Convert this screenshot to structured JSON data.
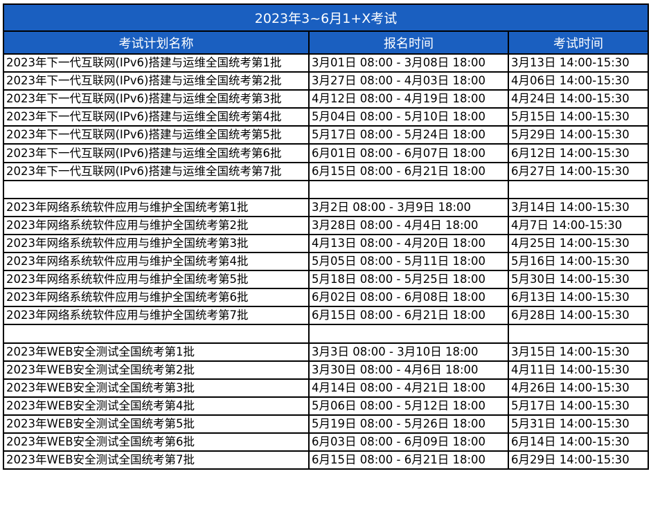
{
  "title": "2023年3~6月1+X考试",
  "headers": [
    "考试计划名称",
    "报名时间",
    "考试时间"
  ],
  "header_color": "#1a5fc0",
  "rows": [
    [
      "2023年下一代互联网(IPv6)搭建与运维全国统考第1批",
      "3月01日 08:00 - 3月08日 18:00",
      "3月13日 14:00-15:30"
    ],
    [
      "2023年下一代互联网(IPv6)搭建与运维全国统考第2批",
      "3月27日 08:00 - 4月03日 18:00",
      "4月06日 14:00-15:30"
    ],
    [
      "2023年下一代互联网(IPv6)搭建与运维全国统考第3批",
      "4月12日 08:00 - 4月19日 18:00",
      "4月24日 14:00-15:30"
    ],
    [
      "2023年下一代互联网(IPv6)搭建与运维全国统考第4批",
      "5月04日 08:00 - 5月10日 18:00",
      "5月15日 14:00-15:30"
    ],
    [
      "2023年下一代互联网(IPv6)搭建与运维全国统考第5批",
      "5月17日 08:00 - 5月24日 18:00",
      "5月29日 14:00-15:30"
    ],
    [
      "2023年下一代互联网(IPv6)搭建与运维全国统考第6批",
      "6月01日 08:00 - 6月07日 18:00",
      "6月12日 14:00-15:30"
    ],
    [
      "2023年下一代互联网(IPv6)搭建与运维全国统考第7批",
      "6月15日 08:00 - 6月21日 18:00",
      "6月27日 14:00-15:30"
    ],
    [
      "",
      "",
      ""
    ],
    [
      "2023年网络系统软件应用与维护全国统考第1批",
      "3月2日 08:00 - 3月9日 18:00",
      "3月14日 14:00-15:30"
    ],
    [
      "2023年网络系统软件应用与维护全国统考第2批",
      "3月28日 08:00 - 4月4日 18:00",
      "4月7日 14:00-15:30"
    ],
    [
      "2023年网络系统软件应用与维护全国统考第3批",
      "4月13日 08:00 - 4月20日 18:00",
      "4月25日 14:00-15:30"
    ],
    [
      "2023年网络系统软件应用与维护全国统考第4批",
      "5月05日 08:00 - 5月11日 18:00",
      "5月16日 14:00-15:30"
    ],
    [
      "2023年网络系统软件应用与维护全国统考第5批",
      "5月18日 08:00 - 5月25日 18:00",
      "5月30日 14:00-15:30"
    ],
    [
      "2023年网络系统软件应用与维护全国统考第6批",
      "6月02日 08:00 - 6月08日 18:00",
      "6月13日 14:00-15:30"
    ],
    [
      "2023年网络系统软件应用与维护全国统考第7批",
      "6月15日 08:00 - 6月21日 18:00",
      "6月28日 14:00-15:30"
    ],
    [
      "",
      "",
      ""
    ],
    [
      "2023年WEB安全测试全国统考第1批",
      "3月3日 08:00 - 3月10日 18:00",
      "3月15日 14:00-15:30"
    ],
    [
      "2023年WEB安全测试全国统考第2批",
      "3月30日 08:00 - 4月6日 18:00",
      "4月11日 14:00-15:30"
    ],
    [
      "2023年WEB安全测试全国统考第3批",
      "4月14日 08:00 - 4月21日 18:00",
      "4月26日 14:00-15:30"
    ],
    [
      "2023年WEB安全测试全国统考第4批",
      "5月06日 08:00 - 5月12日 18:00",
      "5月17日 14:00-15:30"
    ],
    [
      "2023年WEB安全测试全国统考第5批",
      "5月19日 08:00 - 5月26日 18:00",
      "5月31日 14:00-15:30"
    ],
    [
      "2023年WEB安全测试全国统考第6批",
      "6月03日 08:00 - 6月09日 18:00",
      "6月14日 14:00-15:30"
    ],
    [
      "2023年WEB安全测试全国统考第7批",
      "6月15日 08:00 - 6月21日 18:00",
      "6月29日 14:00-15:30"
    ]
  ]
}
